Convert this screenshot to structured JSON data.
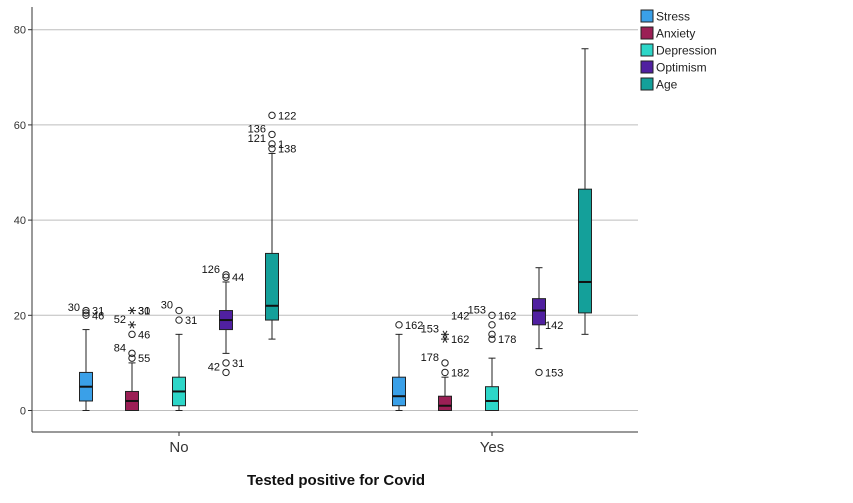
{
  "chart_data": {
    "type": "boxplot",
    "title": "",
    "xlabel": "Tested positive for Covid",
    "ylabel": "",
    "ylim": [
      -4,
      84
    ],
    "yticks": [
      0,
      20,
      40,
      60,
      80
    ],
    "grid": true,
    "legend_position": "top-right",
    "categories": [
      "No",
      "Yes"
    ],
    "series": [
      {
        "name": "Stress",
        "color": "#3aa0e8",
        "boxes": [
          {
            "category": "No",
            "whisker_low": 0,
            "q1": 2,
            "median": 5,
            "q3": 8,
            "whisker_high": 17,
            "outliers": [
              {
                "value": 20,
                "label": "46",
                "marker": "circle"
              },
              {
                "value": 20.5,
                "label": "30",
                "marker": "circle"
              },
              {
                "value": 21,
                "label": "31",
                "marker": "circle"
              }
            ]
          },
          {
            "category": "Yes",
            "whisker_low": 0,
            "q1": 1,
            "median": 3,
            "q3": 7,
            "whisker_high": 16,
            "outliers": [
              {
                "value": 18,
                "label": "162",
                "marker": "circle"
              }
            ]
          }
        ]
      },
      {
        "name": "Anxiety",
        "color": "#9b1f55",
        "boxes": [
          {
            "category": "No",
            "whisker_low": 0,
            "q1": 0,
            "median": 2,
            "q3": 4,
            "whisker_high": 10,
            "outliers": [
              {
                "value": 11,
                "label": "55",
                "marker": "circle"
              },
              {
                "value": 12,
                "label": "84",
                "marker": "circle"
              },
              {
                "value": 16,
                "label": "46",
                "marker": "circle"
              },
              {
                "value": 18,
                "label": "52",
                "marker": "star"
              },
              {
                "value": 21,
                "label": "31",
                "marker": "star"
              },
              {
                "value": 21,
                "label": "30",
                "marker": "none"
              }
            ]
          },
          {
            "category": "Yes",
            "whisker_low": 0,
            "q1": 0,
            "median": 1,
            "q3": 3,
            "whisker_high": 7,
            "outliers": [
              {
                "value": 8,
                "label": "182",
                "marker": "circle"
              },
              {
                "value": 10,
                "label": "178",
                "marker": "circle"
              },
              {
                "value": 15,
                "label": "162",
                "marker": "star"
              },
              {
                "value": 16,
                "label": "153",
                "marker": "star"
              },
              {
                "value": 20,
                "label": "142",
                "marker": "none"
              }
            ]
          }
        ]
      },
      {
        "name": "Depression",
        "color": "#2dd6c8",
        "boxes": [
          {
            "category": "No",
            "whisker_low": 0,
            "q1": 1,
            "median": 4,
            "q3": 7,
            "whisker_high": 16,
            "outliers": [
              {
                "value": 19,
                "label": "31",
                "marker": "circle"
              },
              {
                "value": 21,
                "label": "30",
                "marker": "circle"
              }
            ]
          },
          {
            "category": "Yes",
            "whisker_low": 0,
            "q1": 0,
            "median": 2,
            "q3": 5,
            "whisker_high": 11,
            "outliers": [
              {
                "value": 15,
                "label": "178",
                "marker": "circle"
              },
              {
                "value": 16,
                "label": "",
                "marker": "circle"
              },
              {
                "value": 18,
                "label": "",
                "marker": "circle"
              },
              {
                "value": 20,
                "label": "153",
                "marker": "circle"
              },
              {
                "value": 20,
                "label": "162",
                "marker": "none"
              }
            ]
          }
        ]
      },
      {
        "name": "Optimism",
        "color": "#5020a0",
        "boxes": [
          {
            "category": "No",
            "whisker_low": 12,
            "q1": 17,
            "median": 19,
            "q3": 21,
            "whisker_high": 27,
            "outliers": [
              {
                "value": 28,
                "label": "44",
                "marker": "circle"
              },
              {
                "value": 28.5,
                "label": "126",
                "marker": "circle"
              },
              {
                "value": 10,
                "label": "31",
                "marker": "circle"
              },
              {
                "value": 8,
                "label": "42",
                "marker": "circle"
              }
            ]
          },
          {
            "category": "Yes",
            "whisker_low": 13,
            "q1": 18,
            "median": 21,
            "q3": 23.5,
            "whisker_high": 30,
            "outliers": [
              {
                "value": 8,
                "label": "153",
                "marker": "circle"
              },
              {
                "value": 18,
                "label": "142",
                "marker": "none"
              }
            ]
          }
        ]
      },
      {
        "name": "Age",
        "color": "#14a09a",
        "boxes": [
          {
            "category": "No",
            "whisker_low": 15,
            "q1": 19,
            "median": 22,
            "q3": 33,
            "whisker_high": 54,
            "outliers": [
              {
                "value": 55,
                "label": "138",
                "marker": "circle"
              },
              {
                "value": 56,
                "label": "121",
                "marker": "circle"
              },
              {
                "value": 56,
                "label": "1",
                "marker": "none"
              },
              {
                "value": 58,
                "label": "136",
                "marker": "circle"
              },
              {
                "value": 62,
                "label": "122",
                "marker": "circle"
              }
            ]
          },
          {
            "category": "Yes",
            "whisker_low": 16,
            "q1": 20.5,
            "median": 27,
            "q3": 46.5,
            "whisker_high": 76,
            "outliers": []
          }
        ]
      }
    ]
  }
}
